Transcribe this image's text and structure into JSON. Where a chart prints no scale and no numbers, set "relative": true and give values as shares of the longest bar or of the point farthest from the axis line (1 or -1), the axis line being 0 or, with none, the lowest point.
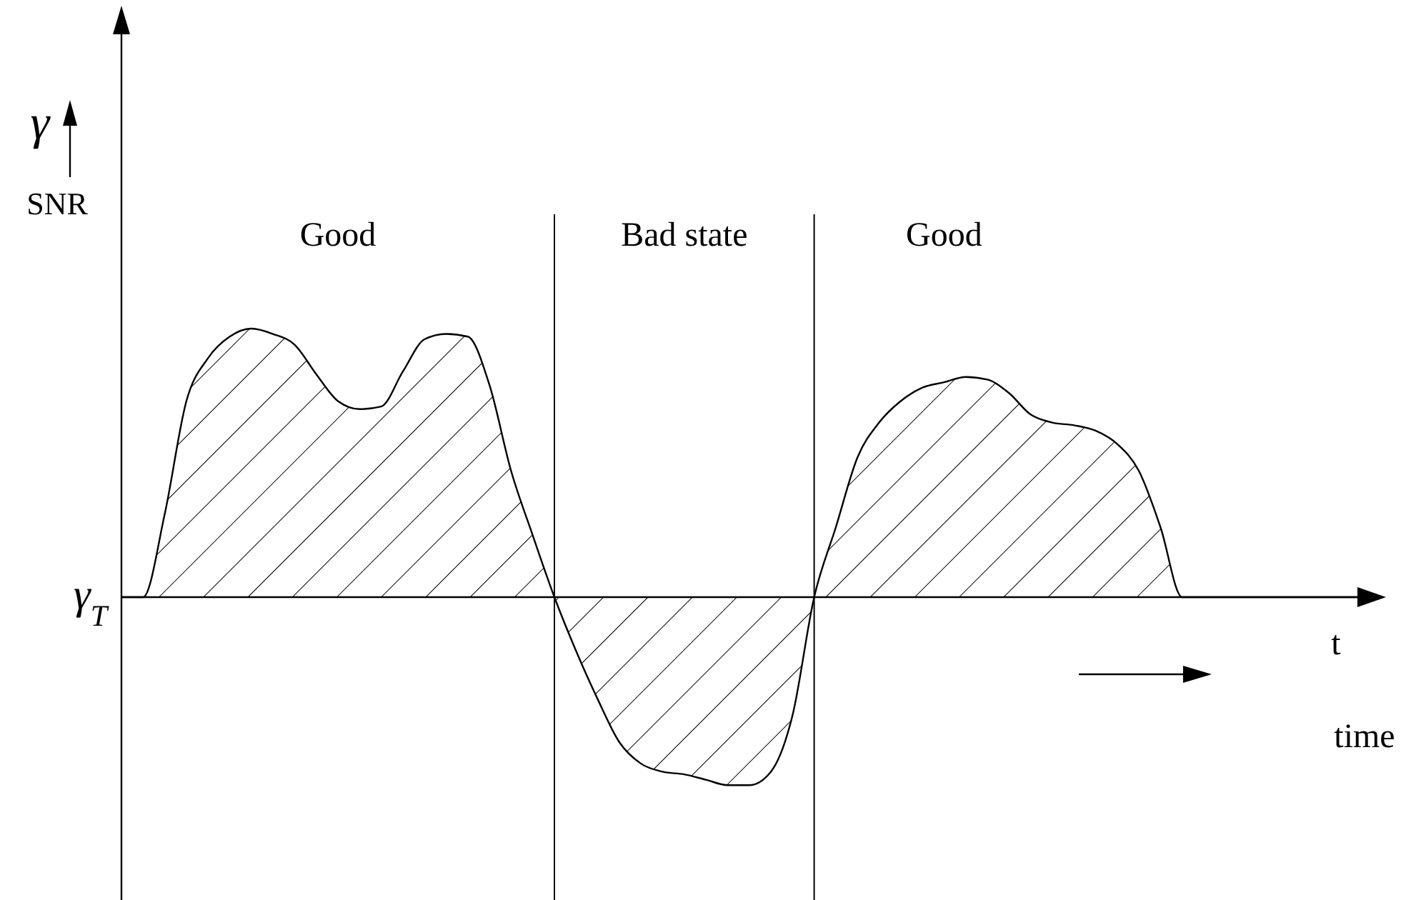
{
  "chart_data": {
    "type": "area",
    "relative": true,
    "ylabel": "γ SNR",
    "xlabel": "t",
    "categories": [
      null,
      null,
      null,
      null,
      null,
      null,
      null,
      null,
      null,
      null,
      null,
      null,
      null,
      null,
      null,
      null,
      null,
      null,
      null,
      null,
      null,
      null,
      null,
      null,
      null,
      null,
      null,
      null,
      null,
      null,
      null,
      null,
      null,
      null,
      null,
      null,
      null,
      null,
      null,
      null,
      null,
      null,
      null,
      null,
      null,
      null,
      null,
      null,
      null,
      null,
      null,
      null,
      null,
      null,
      null,
      null,
      null,
      null,
      null
    ],
    "series": [
      {
        "color": "#000000",
        "values": [
          0,
          0,
          0.31,
          0.73,
          0.89,
          0.97,
          1.0,
          0.98,
          0.94,
          0.83,
          0.73,
          0.7,
          0.71,
          0.84,
          0.96,
          0.98,
          0.97,
          0.79,
          0.47,
          0.23,
          0,
          -0.2,
          -0.38,
          -0.54,
          -0.62,
          -0.65,
          -0.66,
          -0.68,
          -0.7,
          -0.7,
          -0.65,
          -0.44,
          0,
          0.26,
          0.52,
          0.65,
          0.73,
          0.78,
          0.8,
          0.82,
          0.81,
          0.76,
          0.68,
          0.65,
          0.64,
          0.62,
          0.57,
          0.47,
          0.26,
          0,
          0,
          0,
          0,
          0,
          0,
          0,
          0,
          0,
          0
        ]
      }
    ],
    "annotations": [
      "Good",
      "Bad state",
      "Good",
      "time",
      "γ$_{T}$"
    ]
  }
}
